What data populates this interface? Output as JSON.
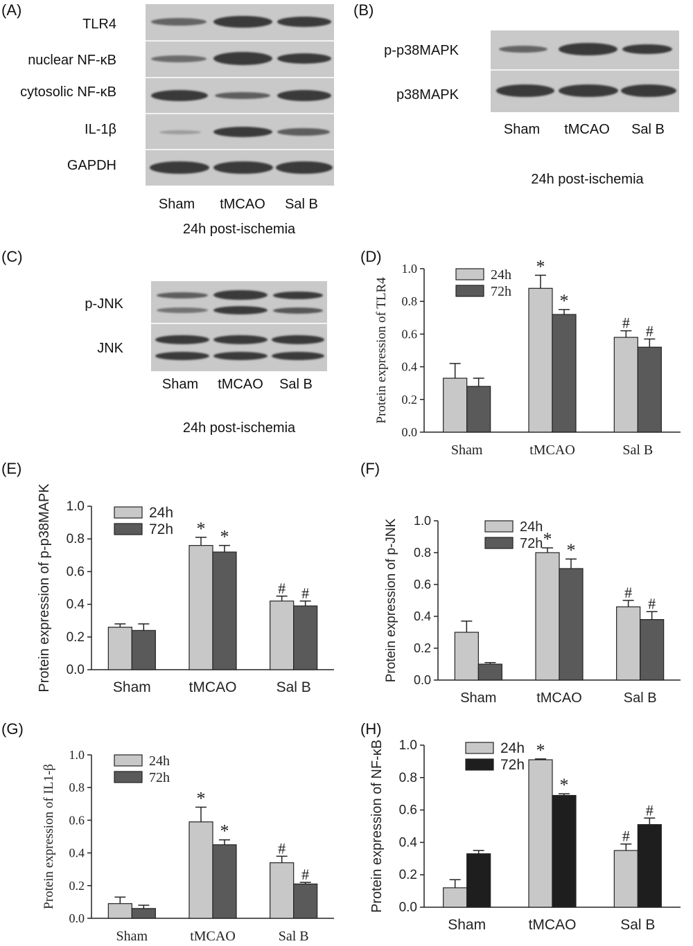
{
  "panels": {
    "A": {
      "letter": "(A)",
      "rows": [
        "TLR4",
        "nuclear NF-κB",
        "cytosolic NF-κB",
        "IL-1β",
        "GAPDH"
      ],
      "lanes": [
        "Sham",
        "tMCAO",
        "Sal B"
      ],
      "caption": "24h post-ischemia"
    },
    "B": {
      "letter": "(B)",
      "rows": [
        "p-p38MAPK",
        "p38MAPK"
      ],
      "lanes": [
        "Sham",
        "tMCAO",
        "Sal B"
      ],
      "caption": "24h post-ischemia"
    },
    "C": {
      "letter": "(C)",
      "rows": [
        "p-JNK",
        "JNK"
      ],
      "lanes": [
        "Sham",
        "tMCAO",
        "Sal B"
      ],
      "caption": "24h post-ischemia"
    }
  },
  "chart_data": [
    {
      "id": "D",
      "letter": "(D)",
      "type": "bar",
      "categories": [
        "Sham",
        "tMCAO",
        "Sal B"
      ],
      "ylabel": "Protein expression of TLR4",
      "ylim": [
        0,
        1.0
      ],
      "yticks": [
        "0.0",
        "0.2",
        "0.4",
        "0.6",
        "0.8",
        "1.0"
      ],
      "series": [
        {
          "name": "24h",
          "color": "#c8c8c8",
          "values": [
            0.33,
            0.88,
            0.58
          ],
          "errors": [
            0.09,
            0.08,
            0.04
          ]
        },
        {
          "name": "72h",
          "color": "#5a5a5a",
          "values": [
            0.28,
            0.72,
            0.52
          ],
          "errors": [
            0.05,
            0.03,
            0.05
          ]
        }
      ],
      "annotations": [
        [
          "",
          ""
        ],
        [
          "*",
          "*"
        ],
        [
          "#",
          "#"
        ]
      ]
    },
    {
      "id": "E",
      "letter": "(E)",
      "type": "bar",
      "categories": [
        "Sham",
        "tMCAO",
        "Sal B"
      ],
      "ylabel": "Protein expression of p-p38MAPK",
      "ylim": [
        0,
        1.0
      ],
      "yticks": [
        "0.0",
        "0.2",
        "0.4",
        "0.6",
        "0.8",
        "1.0"
      ],
      "series": [
        {
          "name": "24h",
          "color": "#c8c8c8",
          "values": [
            0.26,
            0.76,
            0.42
          ],
          "errors": [
            0.02,
            0.05,
            0.03
          ]
        },
        {
          "name": "72h",
          "color": "#5a5a5a",
          "values": [
            0.24,
            0.72,
            0.39
          ],
          "errors": [
            0.04,
            0.04,
            0.03
          ]
        }
      ],
      "annotations": [
        [
          "",
          ""
        ],
        [
          "*",
          "*"
        ],
        [
          "#",
          "#"
        ]
      ]
    },
    {
      "id": "F",
      "letter": "(F)",
      "type": "bar",
      "categories": [
        "Sham",
        "tMCAO",
        "Sal B"
      ],
      "ylabel": "Protein expression of p-JNK",
      "ylim": [
        0,
        1.0
      ],
      "yticks": [
        "0.0",
        "0.2",
        "0.4",
        "0.6",
        "0.8",
        "1.0"
      ],
      "series": [
        {
          "name": "24h",
          "color": "#c8c8c8",
          "values": [
            0.3,
            0.8,
            0.46
          ],
          "errors": [
            0.07,
            0.03,
            0.04
          ]
        },
        {
          "name": "72h",
          "color": "#5a5a5a",
          "values": [
            0.1,
            0.7,
            0.38
          ],
          "errors": [
            0.01,
            0.06,
            0.05
          ]
        }
      ],
      "annotations": [
        [
          "",
          ""
        ],
        [
          "*",
          "*"
        ],
        [
          "#",
          "#"
        ]
      ]
    },
    {
      "id": "G",
      "letter": "(G)",
      "type": "bar",
      "categories": [
        "Sham",
        "tMCAO",
        "Sal B"
      ],
      "ylabel": "Protein expression of IL1-β",
      "ylim": [
        0,
        1.0
      ],
      "yticks": [
        "0.0",
        "0.2",
        "0.4",
        "0.6",
        "0.8",
        "1.0"
      ],
      "series": [
        {
          "name": "24h",
          "color": "#c8c8c8",
          "values": [
            0.09,
            0.59,
            0.34
          ],
          "errors": [
            0.04,
            0.09,
            0.04
          ]
        },
        {
          "name": "72h",
          "color": "#5a5a5a",
          "values": [
            0.06,
            0.45,
            0.21
          ],
          "errors": [
            0.02,
            0.03,
            0.01
          ]
        }
      ],
      "annotations": [
        [
          "",
          ""
        ],
        [
          "*",
          "*"
        ],
        [
          "#",
          "#"
        ]
      ]
    },
    {
      "id": "H",
      "letter": "(H)",
      "type": "bar",
      "categories": [
        "Sham",
        "tMCAO",
        "Sal B"
      ],
      "ylabel": "Protein expression of NF-κB",
      "ylim": [
        0,
        1.0
      ],
      "yticks": [
        "0.0",
        "0.2",
        "0.4",
        "0.6",
        "0.8",
        "1.0"
      ],
      "series": [
        {
          "name": "24h",
          "color": "#c8c8c8",
          "values": [
            0.12,
            0.91,
            0.35
          ],
          "errors": [
            0.05,
            0.005,
            0.04
          ]
        },
        {
          "name": "72h",
          "color": "#1e1e1e",
          "values": [
            0.33,
            0.69,
            0.51
          ],
          "errors": [
            0.02,
            0.01,
            0.04
          ]
        }
      ],
      "annotations": [
        [
          "",
          ""
        ],
        [
          "*",
          "*"
        ],
        [
          "#",
          "#"
        ]
      ]
    }
  ]
}
